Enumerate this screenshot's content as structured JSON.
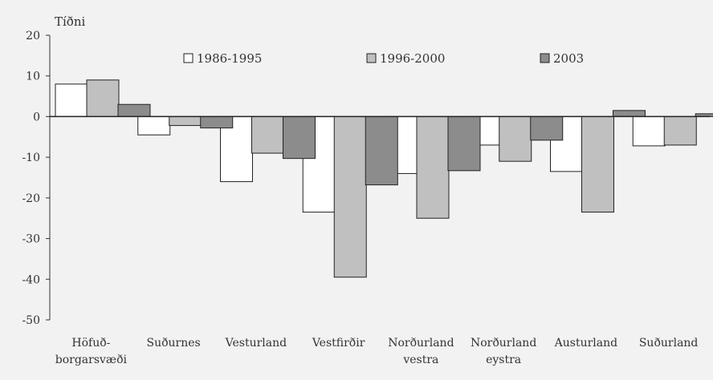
{
  "chart_data": {
    "type": "bar",
    "ylabel": "Tíðni",
    "ylim": [
      -50,
      20
    ],
    "yticks": [
      20,
      10,
      0,
      -10,
      -20,
      -30,
      -40,
      -50
    ],
    "grid": false,
    "legend_position": "top",
    "categories": [
      [
        "Höfuð-",
        "borgarsvæði"
      ],
      [
        "Suðurnes"
      ],
      [
        "Vesturland"
      ],
      [
        "Vestfirðir"
      ],
      [
        "Norðurland",
        "vestra"
      ],
      [
        "Norðurland",
        "eystra"
      ],
      [
        "Austurland"
      ],
      [
        "Suðurland"
      ]
    ],
    "series": [
      {
        "name": "1986-1995",
        "color": "#ffffff",
        "values": [
          8,
          -4.5,
          -16,
          -23.5,
          -14,
          -7,
          -13.5,
          -7.2
        ]
      },
      {
        "name": "1996-2000",
        "color": "#c0c0c0",
        "values": [
          9,
          -2.2,
          -9,
          -39.5,
          -25,
          -11,
          -23.5,
          -7
        ]
      },
      {
        "name": "2003",
        "color": "#8c8c8c",
        "values": [
          3,
          -2.8,
          -10.3,
          -16.8,
          -13.3,
          -5.8,
          1.5,
          0.7
        ]
      }
    ]
  }
}
